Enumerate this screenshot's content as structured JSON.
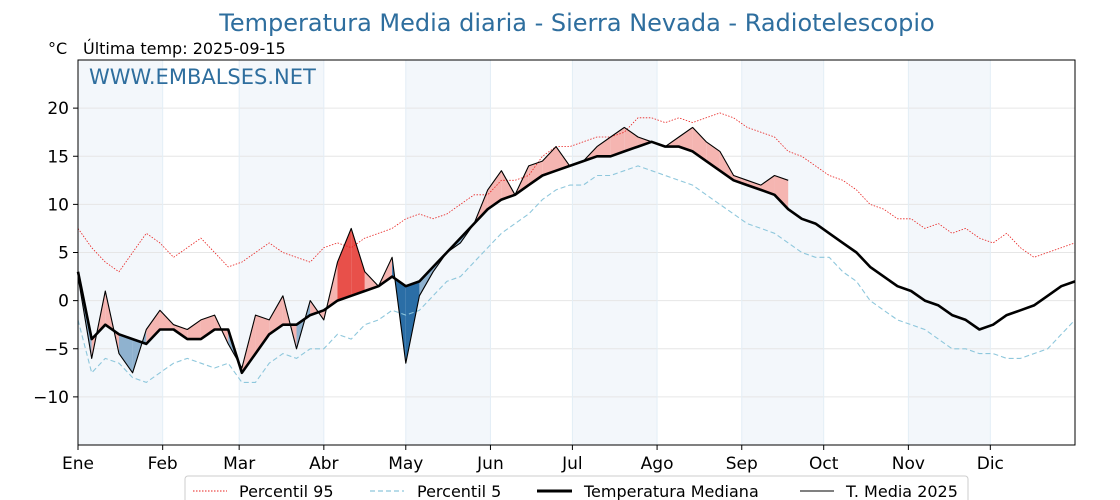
{
  "chart_data": {
    "type": "line",
    "title": "Temperatura Media diaria - Sierra Nevada - Radiotelescopio",
    "unit_label": "°C",
    "subtitle": "Última temp: 2025-09-15",
    "watermark": "WWW.EMBALSES.NET",
    "xlabel": "",
    "ylabel": "",
    "ylim": [
      -15,
      25
    ],
    "yticks": [
      -10,
      -5,
      0,
      5,
      10,
      15,
      20
    ],
    "ytick_labels": [
      "−10",
      "−5",
      "0",
      "5",
      "10",
      "15",
      "20"
    ],
    "months": [
      "Ene",
      "Feb",
      "Mar",
      "Abr",
      "May",
      "Jun",
      "Jul",
      "Ago",
      "Sep",
      "Oct",
      "Nov",
      "Dic"
    ],
    "month_start_days": [
      0,
      31,
      59,
      90,
      120,
      151,
      181,
      212,
      243,
      273,
      304,
      334
    ],
    "days_in_year": 365,
    "grid": true,
    "shaded_months": [
      "Ene",
      "Mar",
      "May",
      "Jul",
      "Sep",
      "Nov"
    ],
    "legend_position": "bottom-center",
    "sample_step_days": 5,
    "series": [
      {
        "name": "Percentil 95",
        "key": "p95",
        "style": "dotted",
        "color": "#e8201e",
        "values": [
          7.5,
          5.5,
          4.0,
          3.0,
          5.0,
          7.0,
          6.0,
          4.5,
          5.5,
          6.5,
          5.0,
          3.5,
          4.0,
          5.0,
          6.0,
          5.0,
          4.5,
          4.0,
          5.5,
          6.0,
          5.5,
          6.5,
          7.0,
          7.5,
          8.5,
          9.0,
          8.5,
          9.0,
          10.0,
          11.0,
          11.0,
          12.5,
          12.5,
          13.0,
          15.0,
          16.0,
          16.0,
          16.5,
          17.0,
          17.0,
          17.5,
          19.0,
          19.0,
          18.5,
          19.0,
          18.5,
          19.0,
          19.5,
          19.0,
          18.0,
          17.5,
          17.0,
          15.5,
          15.0,
          14.0,
          13.0,
          12.5,
          11.5,
          10.0,
          9.5,
          8.5,
          8.5,
          7.5,
          8.0,
          7.0,
          7.5,
          6.5,
          6.0,
          7.0,
          5.5,
          4.5,
          5.0,
          5.5,
          6.0
        ]
      },
      {
        "name": "Percentil 5",
        "key": "p5",
        "style": "dashed",
        "color": "#8ec7dc",
        "values": [
          -2.0,
          -7.5,
          -6.0,
          -6.5,
          -8.0,
          -8.5,
          -7.5,
          -6.5,
          -6.0,
          -6.5,
          -7.0,
          -6.5,
          -8.5,
          -8.5,
          -6.5,
          -5.5,
          -6.0,
          -5.0,
          -5.0,
          -3.5,
          -4.0,
          -2.5,
          -2.0,
          -1.0,
          -1.5,
          -1.0,
          0.5,
          2.0,
          2.5,
          4.0,
          5.5,
          7.0,
          8.0,
          9.0,
          10.5,
          11.5,
          12.0,
          12.0,
          13.0,
          13.0,
          13.5,
          14.0,
          13.5,
          13.0,
          12.5,
          12.0,
          11.0,
          10.0,
          9.0,
          8.0,
          7.5,
          7.0,
          6.0,
          5.0,
          4.5,
          4.5,
          3.0,
          2.0,
          0.0,
          -1.0,
          -2.0,
          -2.5,
          -3.0,
          -4.0,
          -5.0,
          -5.0,
          -5.5,
          -5.5,
          -6.0,
          -6.0,
          -5.5,
          -5.0,
          -3.5,
          -2.0
        ]
      },
      {
        "name": "Temperatura Mediana",
        "key": "median",
        "style": "thick",
        "color": "#000000",
        "values": [
          3.0,
          -4.0,
          -2.5,
          -3.5,
          -4.0,
          -4.5,
          -3.0,
          -3.0,
          -4.0,
          -4.0,
          -3.0,
          -3.0,
          -7.5,
          -5.5,
          -3.5,
          -2.5,
          -2.5,
          -1.5,
          -1.0,
          0.0,
          0.5,
          1.0,
          1.5,
          2.5,
          1.5,
          2.0,
          3.5,
          5.0,
          6.5,
          8.0,
          9.5,
          10.5,
          11.0,
          12.0,
          13.0,
          13.5,
          14.0,
          14.5,
          15.0,
          15.0,
          15.5,
          16.0,
          16.5,
          16.0,
          16.0,
          15.5,
          14.5,
          13.5,
          12.5,
          12.0,
          11.5,
          11.0,
          9.5,
          8.5,
          8.0,
          7.0,
          6.0,
          5.0,
          3.5,
          2.5,
          1.5,
          1.0,
          0.0,
          -0.5,
          -1.5,
          -2.0,
          -3.0,
          -2.5,
          -1.5,
          -1.0,
          -0.5,
          0.5,
          1.5,
          2.0
        ]
      },
      {
        "name": "T. Media 2025",
        "key": "current",
        "style": "thin",
        "color": "#000000",
        "values": [
          2.5,
          -6.0,
          1.0,
          -5.5,
          -7.5,
          -3.0,
          -1.0,
          -2.5,
          -3.0,
          -2.0,
          -1.5,
          -4.5,
          -7.0,
          -1.5,
          -2.0,
          0.5,
          -5.0,
          0.0,
          -2.0,
          4.0,
          7.5,
          3.0,
          1.5,
          4.5,
          -6.5,
          0.5,
          3.0,
          5.0,
          6.0,
          8.0,
          11.5,
          13.5,
          11.0,
          14.0,
          14.5,
          16.0,
          14.0,
          14.5,
          16.0,
          17.0,
          18.0,
          17.0,
          16.5,
          16.0,
          17.0,
          18.0,
          16.5,
          15.5,
          13.0,
          12.5,
          12.0,
          13.0,
          12.5
        ]
      }
    ]
  }
}
